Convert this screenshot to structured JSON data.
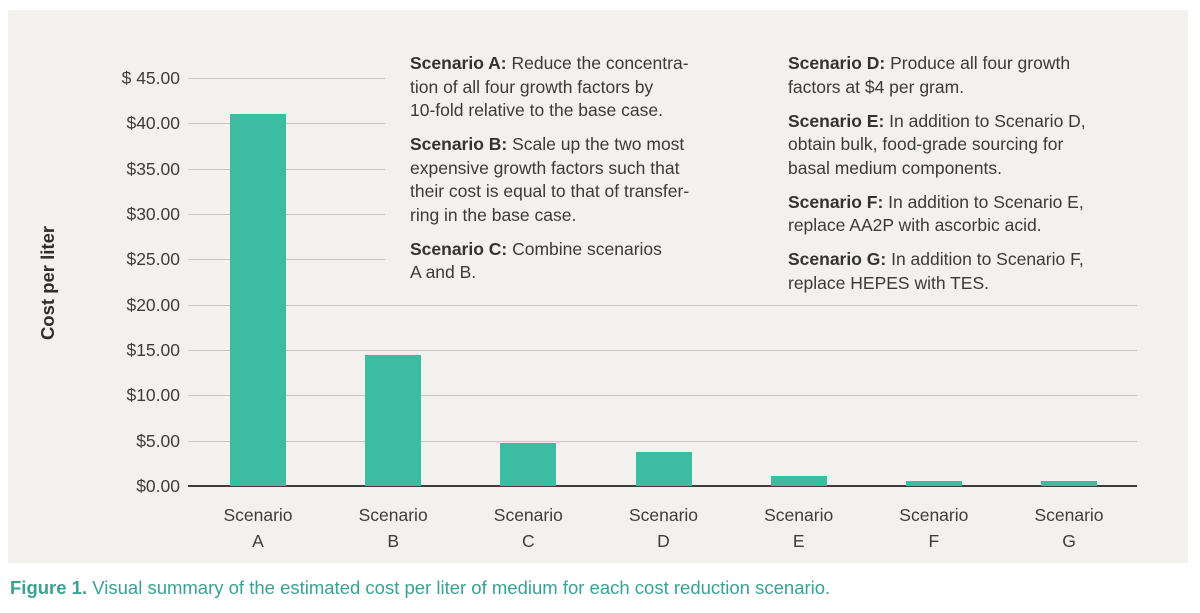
{
  "figure": {
    "caption_label": "Figure 1.",
    "caption_text": "Visual summary of the estimated cost per liter of medium for each cost reduction scenario."
  },
  "colors": {
    "bar": "#3cbda1",
    "panel_bg": "#f2f1ed",
    "text": "#3d3d3b",
    "grid": "#c8c8c3",
    "axis": "#3c3c3a",
    "caption": "#38a294"
  },
  "chart_data": {
    "type": "bar",
    "title": "",
    "xlabel": "",
    "ylabel": "Cost per liter",
    "ylim": [
      0,
      45
    ],
    "ytick_step": 5,
    "ytick_labels": [
      "$ 45.00",
      "$40.00",
      "$35.00",
      "$30.00",
      "$25.00",
      "$20.00",
      "$15.00",
      "$10.00",
      "$5.00",
      "$0.00"
    ],
    "grid": true,
    "legend": false,
    "categories": [
      "Scenario A",
      "Scenario B",
      "Scenario C",
      "Scenario D",
      "Scenario E",
      "Scenario F",
      "Scenario G"
    ],
    "values": [
      41.0,
      14.5,
      4.7,
      3.7,
      1.1,
      0.5,
      0.5
    ],
    "bar_color": "#3cbda1"
  },
  "annotations": {
    "left_column": [
      {
        "label": "Scenario A:",
        "lines": [
          "Reduce the concentra-",
          "tion of all four growth factors by",
          "10-fold relative to the base case."
        ]
      },
      {
        "label": "Scenario B:",
        "lines": [
          "Scale up the two most",
          "expensive growth factors such that",
          "their cost is equal to that of transfer-",
          "ring in the base case."
        ]
      },
      {
        "label": "Scenario C:",
        "lines": [
          "Combine scenarios",
          "A and B."
        ]
      }
    ],
    "right_column": [
      {
        "label": "Scenario D:",
        "lines": [
          "Produce all four growth",
          "factors at $4 per gram."
        ]
      },
      {
        "label": "Scenario E:",
        "lines": [
          "In addition to Scenario D,",
          "obtain bulk, food-grade sourcing for",
          "basal medium components."
        ]
      },
      {
        "label": "Scenario F:",
        "lines": [
          "In addition to Scenario E,",
          "replace AA2P with ascorbic acid."
        ]
      },
      {
        "label": "Scenario G:",
        "lines": [
          "In addition to Scenario F,",
          "replace HEPES with TES."
        ]
      }
    ]
  }
}
